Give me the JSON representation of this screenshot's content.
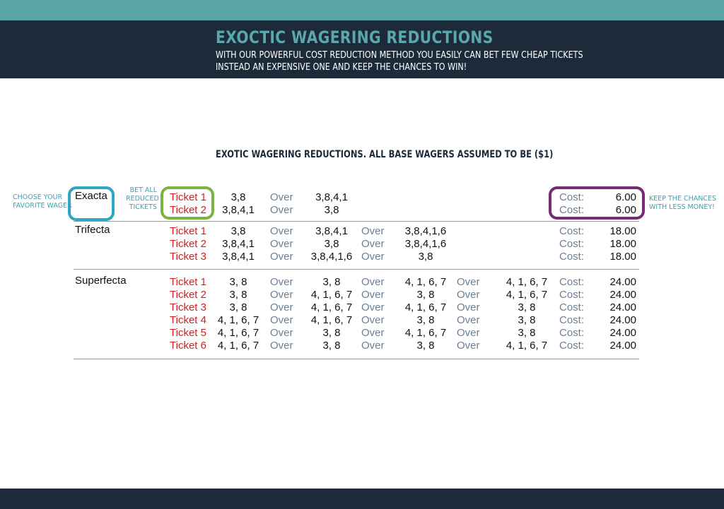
{
  "header": {
    "title": "EXOCTIC WAGERING REDUCTIONS",
    "subtitle_line1": "With our powerful cost reduction method you easily can bet few cheap tickets",
    "subtitle_line2": "instead an expensive one and keep the chances to win!"
  },
  "table_title": "EXOTIC WAGERING REDUCTIONS. ALL BASE WAGERS ASSUMED TO BE ($1)",
  "annotations": {
    "left": [
      "CHOOSE YOUR",
      "FAVORITE WAGER"
    ],
    "middle": [
      "BET ALL",
      "REDUCED",
      "TICKETS"
    ],
    "right": [
      "KEEP THE CHANCES",
      "WITH LESS MONEY!"
    ]
  },
  "labels": {
    "over": "Over",
    "cost": "Cost:"
  },
  "groups": [
    {
      "wager": "Exacta",
      "tickets": [
        {
          "ticket": "Ticket 1",
          "legs": [
            "3,8",
            "3,8,4,1"
          ],
          "cost": "6.00"
        },
        {
          "ticket": "Ticket 2",
          "legs": [
            "3,8,4,1",
            "3,8"
          ],
          "cost": "6.00"
        }
      ]
    },
    {
      "wager": "Trifecta",
      "tickets": [
        {
          "ticket": "Ticket 1",
          "legs": [
            "3,8",
            "3,8,4,1",
            "3,8,4,1,6"
          ],
          "cost": "18.00"
        },
        {
          "ticket": "Ticket 2",
          "legs": [
            "3,8,4,1",
            "3,8",
            "3,8,4,1,6"
          ],
          "cost": "18.00"
        },
        {
          "ticket": "Ticket 3",
          "legs": [
            "3,8,4,1",
            "3,8,4,1,6",
            "3,8"
          ],
          "cost": "18.00"
        }
      ]
    },
    {
      "wager": "Superfecta",
      "tickets": [
        {
          "ticket": "Ticket 1",
          "legs": [
            "3, 8",
            "3, 8",
            "4, 1, 6, 7",
            "4, 1, 6, 7"
          ],
          "cost": "24.00"
        },
        {
          "ticket": "Ticket 2",
          "legs": [
            "3, 8",
            "4, 1, 6, 7",
            "3, 8",
            "4, 1, 6, 7"
          ],
          "cost": "24.00"
        },
        {
          "ticket": "Ticket 3",
          "legs": [
            "3, 8",
            "4, 1, 6, 7",
            "4, 1, 6, 7",
            "3, 8"
          ],
          "cost": "24.00"
        },
        {
          "ticket": "Ticket 4",
          "legs": [
            "4, 1, 6, 7",
            "4, 1, 6, 7",
            "3, 8",
            "3, 8"
          ],
          "cost": "24.00"
        },
        {
          "ticket": "Ticket 5",
          "legs": [
            "4, 1, 6, 7",
            "3, 8",
            "4, 1, 6, 7",
            "3, 8"
          ],
          "cost": "24.00"
        },
        {
          "ticket": "Ticket 6",
          "legs": [
            "4, 1, 6, 7",
            "3, 8",
            "3, 8",
            "4, 1, 6, 7"
          ],
          "cost": "24.00"
        }
      ]
    }
  ]
}
